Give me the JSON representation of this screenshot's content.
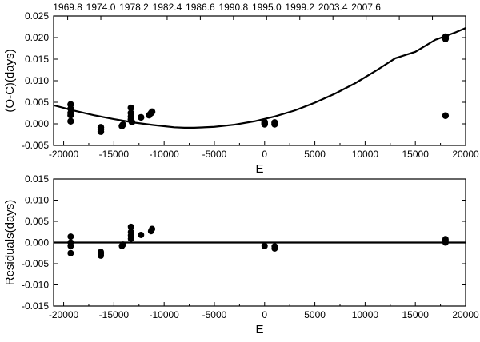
{
  "chart_data": [
    {
      "type": "scatter",
      "panel": "top",
      "xlabel": "E",
      "ylabel": "(O-C)(days)",
      "xlim": [
        -21000,
        20000
      ],
      "ylim": [
        -0.005,
        0.025
      ],
      "xticks": [
        -20000,
        -15000,
        -10000,
        -5000,
        0,
        5000,
        10000,
        15000,
        20000
      ],
      "xtick_labels": [
        "-20000",
        "-15000",
        "-10000",
        "-5000",
        "0",
        "5000",
        "10000",
        "15000",
        "20000"
      ],
      "yticks": [
        -0.005,
        0.0,
        0.005,
        0.01,
        0.015,
        0.02,
        0.025
      ],
      "ytick_labels": [
        "-0.005",
        "0.000",
        "0.005",
        "0.010",
        "0.015",
        "0.020",
        "0.025"
      ],
      "top_axis": {
        "label_positions": [
          -19600,
          -16300,
          -13000,
          -9700,
          -6400,
          -3100,
          200,
          3500,
          6800,
          10100,
          13400,
          16700
        ],
        "tick_labels": [
          "1969.8",
          "1974.0",
          "1978.2",
          "1982.4",
          "1986.6",
          "1990.8",
          "1995.0",
          "1999.2",
          "2003.4",
          "2007.6",
          "",
          ""
        ]
      },
      "series": [
        {
          "kind": "points",
          "x": [
            -19300,
            -19300,
            -19300,
            -19300,
            -19300,
            -16300,
            -16300,
            -16300,
            -14200,
            -14100,
            -13300,
            -13300,
            -13300,
            -13300,
            -13200,
            -12300,
            -11500,
            -11300,
            -11200,
            0,
            0,
            0,
            1000,
            1000,
            18000,
            18000,
            18000
          ],
          "y": [
            0.0045,
            0.0035,
            0.0025,
            0.002,
            0.0006,
            -0.0008,
            -0.0013,
            -0.0018,
            -0.0005,
            -0.0002,
            0.0037,
            0.0025,
            0.0017,
            0.001,
            0.0004,
            0.0015,
            0.002,
            0.0025,
            0.0028,
            0.0004,
            0.0001,
            -0.0001,
            0.0003,
            -0.0001,
            0.0019,
            0.0197,
            0.0202
          ]
        },
        {
          "kind": "fit-curve",
          "x": [
            -21000,
            -19000,
            -17000,
            -15000,
            -13000,
            -11000,
            -9000,
            -8000,
            -7000,
            -5000,
            -3000,
            -1000,
            1000,
            3000,
            5000,
            7000,
            9000,
            11000,
            13000,
            15000,
            17000,
            19000,
            20000
          ],
          "y": [
            0.0043,
            0.0031,
            0.002,
            0.0011,
            0.0003,
            -0.0003,
            -0.0008,
            -0.0009,
            -0.0009,
            -0.0007,
            -0.0002,
            0.0006,
            0.0017,
            0.0031,
            0.0049,
            0.007,
            0.0094,
            0.0122,
            0.0152,
            0.0167,
            0.0195,
            0.0212,
            0.0222
          ]
        }
      ]
    },
    {
      "type": "scatter",
      "panel": "bottom",
      "xlabel": "E",
      "ylabel": "Residuals(days)",
      "xlim": [
        -21000,
        20000
      ],
      "ylim": [
        -0.015,
        0.015
      ],
      "xticks": [
        -20000,
        -15000,
        -10000,
        -5000,
        0,
        5000,
        10000,
        15000,
        20000
      ],
      "xtick_labels": [
        "-20000",
        "-15000",
        "-10000",
        "-5000",
        "0",
        "5000",
        "10000",
        "15000",
        "20000"
      ],
      "yticks": [
        -0.015,
        -0.01,
        -0.005,
        0.0,
        0.005,
        0.01,
        0.015
      ],
      "ytick_labels": [
        "-0.015",
        "-0.010",
        "-0.005",
        "0.000",
        "0.005",
        "0.010",
        "0.015"
      ],
      "series": [
        {
          "kind": "points",
          "x": [
            -19300,
            -19300,
            -19300,
            -19300,
            -16300,
            -16300,
            -16300,
            -14200,
            -14100,
            -13300,
            -13300,
            -13300,
            -13300,
            -12300,
            -11300,
            -11200,
            0,
            1000,
            1000,
            18000,
            18000,
            18000
          ],
          "y": [
            0.0014,
            0.0,
            -0.0008,
            -0.0025,
            -0.0022,
            -0.0027,
            -0.0031,
            -0.0008,
            -0.0005,
            0.0037,
            0.0025,
            0.0017,
            0.0009,
            0.0018,
            0.0027,
            0.0032,
            -0.0008,
            -0.0009,
            -0.0014,
            0.0008,
            0.0004,
            0.0
          ],
          "radius": 4
        },
        {
          "kind": "zero-line",
          "x": [
            -21000,
            20000
          ],
          "y": [
            0,
            0
          ]
        }
      ]
    }
  ]
}
